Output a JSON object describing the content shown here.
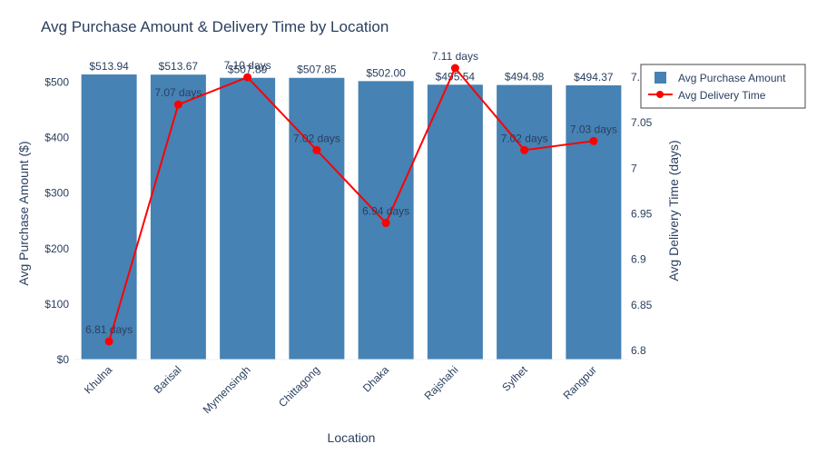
{
  "chart_data": {
    "type": "bar",
    "title": "Avg Purchase Amount & Delivery Time by Location",
    "xlabel": "Location",
    "ylabel": "Avg Purchase Amount ($)",
    "y2label": "Avg Delivery Time (days)",
    "categories": [
      "Khulna",
      "Barisal",
      "Mymensingh",
      "Chittagong",
      "Dhaka",
      "Rajshahi",
      "Sylhet",
      "Rangpur"
    ],
    "ylim": [
      0,
      550
    ],
    "y2lim": [
      6.79,
      7.125
    ],
    "yticks": [
      "$0",
      "$100",
      "$200",
      "$300",
      "$400",
      "$500"
    ],
    "y2ticks": [
      "6.8",
      "6.85",
      "6.9",
      "6.95",
      "7",
      "7.05",
      "7.1"
    ],
    "series": [
      {
        "name": "Avg Purchase Amount",
        "type": "bar",
        "axis": "left",
        "color": "#4682b4",
        "values": [
          513.94,
          513.67,
          507.89,
          507.85,
          502.0,
          495.54,
          494.98,
          494.37
        ],
        "labels": [
          "$513.94",
          "$513.67",
          "$507.89",
          "$507.85",
          "$502.00",
          "$495.54",
          "$494.98",
          "$494.37"
        ]
      },
      {
        "name": "Avg Delivery Time",
        "type": "line",
        "axis": "right",
        "color": "#ff0000",
        "values": [
          6.81,
          7.07,
          7.1,
          7.02,
          6.94,
          7.11,
          7.02,
          7.03
        ],
        "labels": [
          "6.81 days",
          "7.07 days",
          "7.10 days",
          "7.02 days",
          "6.94 days",
          "7.11 days",
          "7.02 days",
          "7.03 days"
        ]
      }
    ],
    "legend": "top-right",
    "grid": false
  }
}
